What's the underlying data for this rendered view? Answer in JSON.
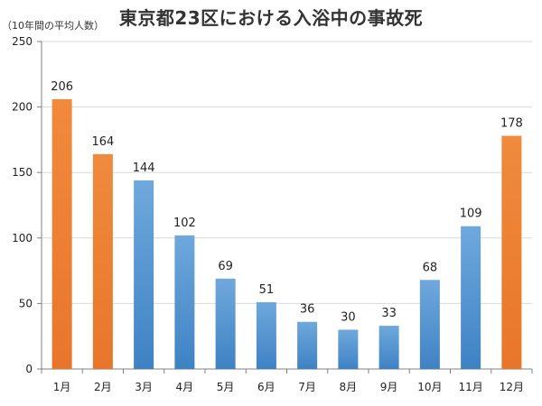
{
  "title": "東京都23区における入浴中の事故死",
  "unit_note": "（10年間の平均人数）",
  "chart_data": {
    "type": "bar",
    "title": "東京都23区における入浴中の事故死",
    "ylabel": "（10年間の平均人数）",
    "xlabel": "",
    "categories": [
      "1月",
      "2月",
      "3月",
      "4月",
      "5月",
      "6月",
      "7月",
      "8月",
      "9月",
      "10月",
      "11月",
      "12月"
    ],
    "values": [
      206,
      164,
      144,
      102,
      69,
      51,
      36,
      30,
      33,
      68,
      109,
      178
    ],
    "bar_colors": [
      "#ED7D31",
      "#ED7D31",
      "#5B9BD5",
      "#5B9BD5",
      "#5B9BD5",
      "#5B9BD5",
      "#5B9BD5",
      "#5B9BD5",
      "#5B9BD5",
      "#5B9BD5",
      "#5B9BD5",
      "#ED7D31"
    ],
    "ylim": [
      0,
      250
    ],
    "yticks": [
      0,
      50,
      100,
      150,
      200,
      250
    ],
    "grid": true,
    "legend": "none"
  }
}
